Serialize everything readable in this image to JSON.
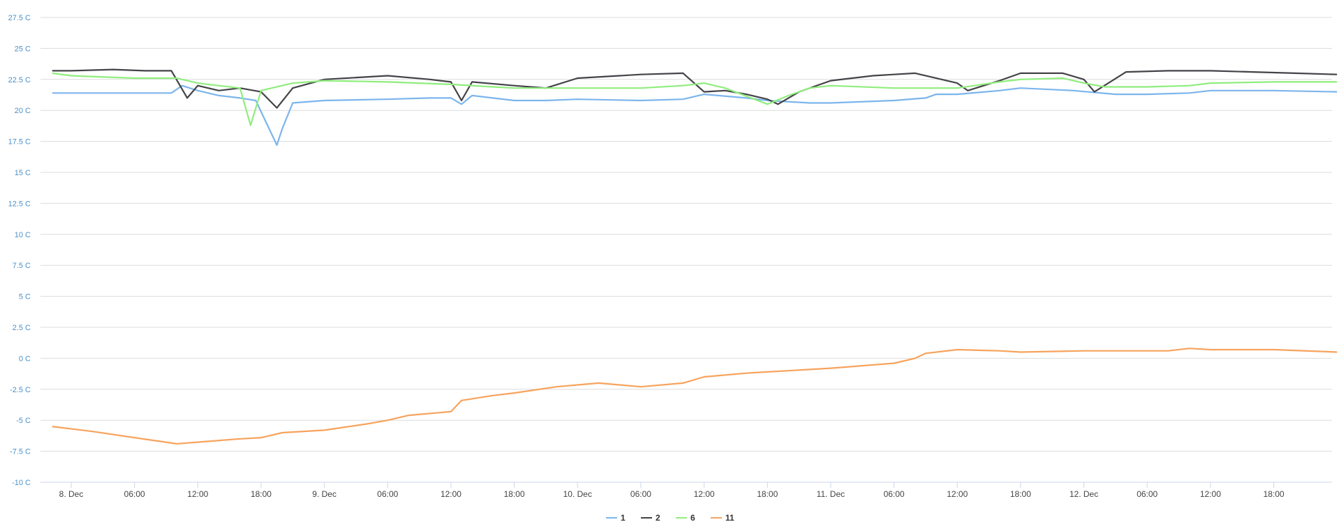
{
  "chart_data": {
    "type": "line",
    "title": "",
    "xlabel": "",
    "ylabel": "",
    "y_unit": " C",
    "ylim": [
      -10,
      27.5
    ],
    "yticks": [
      "27.5 C",
      "25 C",
      "22.5 C",
      "20 C",
      "17.5 C",
      "15 C",
      "12.5 C",
      "10 C",
      "7.5 C",
      "5 C",
      "2.5 C",
      "0 C",
      "-2.5 C",
      "-5 C",
      "-7.5 C",
      "-10 C"
    ],
    "x_hours_range": [
      -6,
      140
    ],
    "xticks": [
      {
        "h": 0,
        "label": "8. Dec"
      },
      {
        "h": 6,
        "label": "06:00"
      },
      {
        "h": 12,
        "label": "12:00"
      },
      {
        "h": 18,
        "label": "18:00"
      },
      {
        "h": 24,
        "label": "9. Dec"
      },
      {
        "h": 30,
        "label": "06:00"
      },
      {
        "h": 36,
        "label": "12:00"
      },
      {
        "h": 42,
        "label": "18:00"
      },
      {
        "h": 48,
        "label": "10. Dec"
      },
      {
        "h": 54,
        "label": "06:00"
      },
      {
        "h": 60,
        "label": "12:00"
      },
      {
        "h": 66,
        "label": "18:00"
      },
      {
        "h": 72,
        "label": "11. Dec"
      },
      {
        "h": 78,
        "label": "06:00"
      },
      {
        "h": 84,
        "label": "12:00"
      },
      {
        "h": 90,
        "label": "18:00"
      },
      {
        "h": 96,
        "label": "12. Dec"
      },
      {
        "h": 102,
        "label": "06:00"
      },
      {
        "h": 108,
        "label": "12:00"
      },
      {
        "h": 114,
        "label": "18:00"
      }
    ],
    "grid": true,
    "legend": "bottom-center",
    "series": [
      {
        "name": "1",
        "color": "#7cb5ec",
        "points": [
          [
            -1.8,
            21.4
          ],
          [
            3,
            21.4
          ],
          [
            7,
            21.4
          ],
          [
            9.5,
            21.4
          ],
          [
            10.5,
            22
          ],
          [
            12,
            21.6
          ],
          [
            14,
            21.2
          ],
          [
            16,
            21
          ],
          [
            17.5,
            20.8
          ],
          [
            18.5,
            19
          ],
          [
            19.5,
            17.2
          ],
          [
            20,
            18.5
          ],
          [
            21,
            20.6
          ],
          [
            24,
            20.8
          ],
          [
            30,
            20.9
          ],
          [
            34,
            21
          ],
          [
            36,
            21
          ],
          [
            37,
            20.5
          ],
          [
            38,
            21.2
          ],
          [
            42,
            20.8
          ],
          [
            45,
            20.8
          ],
          [
            48,
            20.9
          ],
          [
            54,
            20.8
          ],
          [
            58,
            20.9
          ],
          [
            60,
            21.3
          ],
          [
            64,
            21
          ],
          [
            66,
            20.8
          ],
          [
            70,
            20.6
          ],
          [
            72,
            20.6
          ],
          [
            78,
            20.8
          ],
          [
            81,
            21
          ],
          [
            82,
            21.3
          ],
          [
            84,
            21.3
          ],
          [
            88,
            21.6
          ],
          [
            90,
            21.8
          ],
          [
            95,
            21.6
          ],
          [
            99,
            21.3
          ],
          [
            102,
            21.3
          ],
          [
            106,
            21.4
          ],
          [
            108,
            21.6
          ],
          [
            114,
            21.6
          ],
          [
            120,
            21.5
          ]
        ]
      },
      {
        "name": "2",
        "color": "#434348",
        "points": [
          [
            -1.8,
            23.2
          ],
          [
            0,
            23.2
          ],
          [
            4,
            23.3
          ],
          [
            7,
            23.2
          ],
          [
            9.5,
            23.2
          ],
          [
            11,
            21
          ],
          [
            12,
            22
          ],
          [
            14,
            21.6
          ],
          [
            16,
            21.8
          ],
          [
            18,
            21.5
          ],
          [
            19.5,
            20.2
          ],
          [
            21,
            21.8
          ],
          [
            24,
            22.5
          ],
          [
            30,
            22.8
          ],
          [
            34,
            22.5
          ],
          [
            36,
            22.3
          ],
          [
            37,
            20.8
          ],
          [
            38,
            22.3
          ],
          [
            42,
            22
          ],
          [
            45,
            21.8
          ],
          [
            48,
            22.6
          ],
          [
            52,
            22.8
          ],
          [
            54,
            22.9
          ],
          [
            58,
            23
          ],
          [
            60,
            21.5
          ],
          [
            62,
            21.6
          ],
          [
            64,
            21.3
          ],
          [
            66,
            20.9
          ],
          [
            67,
            20.5
          ],
          [
            69,
            21.5
          ],
          [
            72,
            22.4
          ],
          [
            76,
            22.8
          ],
          [
            80,
            23
          ],
          [
            84,
            22.2
          ],
          [
            85,
            21.6
          ],
          [
            88,
            22.4
          ],
          [
            90,
            23
          ],
          [
            94,
            23
          ],
          [
            96,
            22.5
          ],
          [
            97,
            21.5
          ],
          [
            100,
            23.1
          ],
          [
            104,
            23.2
          ],
          [
            108,
            23.2
          ],
          [
            112,
            23.1
          ],
          [
            116,
            23
          ],
          [
            120,
            22.9
          ]
        ]
      },
      {
        "name": "6",
        "color": "#90ed7d",
        "points": [
          [
            -1.8,
            23
          ],
          [
            0,
            22.8
          ],
          [
            6,
            22.6
          ],
          [
            10,
            22.6
          ],
          [
            12,
            22.2
          ],
          [
            14,
            22
          ],
          [
            16,
            21.8
          ],
          [
            17,
            18.8
          ],
          [
            18,
            21.6
          ],
          [
            19,
            21.8
          ],
          [
            21,
            22.2
          ],
          [
            24,
            22.4
          ],
          [
            30,
            22.3
          ],
          [
            36,
            22.1
          ],
          [
            40,
            21.9
          ],
          [
            42,
            21.8
          ],
          [
            48,
            21.8
          ],
          [
            54,
            21.8
          ],
          [
            58,
            22
          ],
          [
            60,
            22.2
          ],
          [
            62,
            21.8
          ],
          [
            66,
            20.5
          ],
          [
            68,
            21.2
          ],
          [
            70,
            21.8
          ],
          [
            72,
            22
          ],
          [
            78,
            21.8
          ],
          [
            84,
            21.8
          ],
          [
            88,
            22.3
          ],
          [
            90,
            22.5
          ],
          [
            94,
            22.6
          ],
          [
            96,
            22.2
          ],
          [
            98,
            21.9
          ],
          [
            102,
            21.9
          ],
          [
            106,
            22
          ],
          [
            108,
            22.2
          ],
          [
            114,
            22.3
          ],
          [
            120,
            22.3
          ]
        ]
      },
      {
        "name": "11",
        "color": "#f7a35c",
        "points": [
          [
            -1.8,
            -5.5
          ],
          [
            2,
            -5.9
          ],
          [
            6,
            -6.4
          ],
          [
            10,
            -6.9
          ],
          [
            13,
            -6.7
          ],
          [
            16,
            -6.5
          ],
          [
            18,
            -6.4
          ],
          [
            20,
            -6
          ],
          [
            24,
            -5.8
          ],
          [
            28,
            -5.3
          ],
          [
            30,
            -5
          ],
          [
            32,
            -4.6
          ],
          [
            36,
            -4.3
          ],
          [
            37,
            -3.4
          ],
          [
            40,
            -3
          ],
          [
            42,
            -2.8
          ],
          [
            46,
            -2.3
          ],
          [
            50,
            -2
          ],
          [
            54,
            -2.3
          ],
          [
            58,
            -2
          ],
          [
            60,
            -1.5
          ],
          [
            64,
            -1.2
          ],
          [
            66,
            -1.1
          ],
          [
            70,
            -0.9
          ],
          [
            72,
            -0.8
          ],
          [
            78,
            -0.4
          ],
          [
            80,
            0
          ],
          [
            81,
            0.4
          ],
          [
            84,
            0.7
          ],
          [
            88,
            0.6
          ],
          [
            90,
            0.5
          ],
          [
            96,
            0.6
          ],
          [
            100,
            0.6
          ],
          [
            104,
            0.6
          ],
          [
            106,
            0.8
          ],
          [
            108,
            0.7
          ],
          [
            114,
            0.7
          ],
          [
            120,
            0.5
          ]
        ]
      }
    ]
  }
}
